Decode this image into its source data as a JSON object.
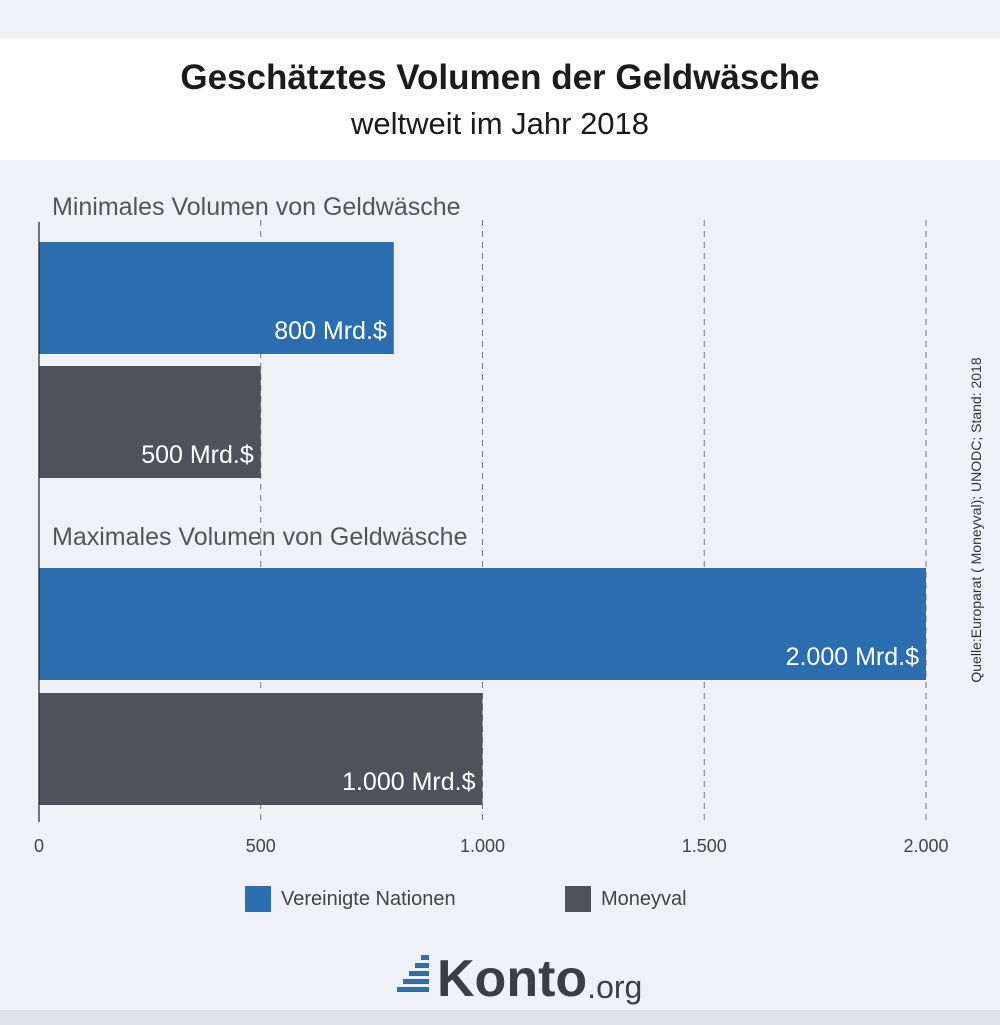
{
  "title": "Geschätztes Volumen der Geldwäsche",
  "subtitle": "weltweit im Jahr 2018",
  "source": "Quelle:Europarat ( Moneyval); UNODC; Stand: 2018",
  "logo": {
    "word": "Konto",
    "tld": ".org"
  },
  "colors": {
    "un": "#2c6daf",
    "moneyval": "#4f525a"
  },
  "chart_data": {
    "type": "bar",
    "orientation": "horizontal",
    "groups": [
      "Minimales Volumen von Geldwäsche",
      "Maximales Volumen von Geldwäsche"
    ],
    "series": [
      {
        "name": "Vereinigte Nationen",
        "values": [
          800,
          2000
        ],
        "labels": [
          "800 Mrd.$",
          "2.000 Mrd.$"
        ]
      },
      {
        "name": "Moneyval",
        "values": [
          500,
          1000
        ],
        "labels": [
          "500 Mrd.$",
          "1.000 Mrd.$"
        ]
      }
    ],
    "xlim": [
      0,
      2000
    ],
    "xticks": [
      0,
      500,
      1000,
      1500,
      2000
    ],
    "xtick_labels": [
      "0",
      "500",
      "1.000",
      "1.500",
      "2.000"
    ],
    "grid": "vertical dashed",
    "legend": "bottom"
  }
}
